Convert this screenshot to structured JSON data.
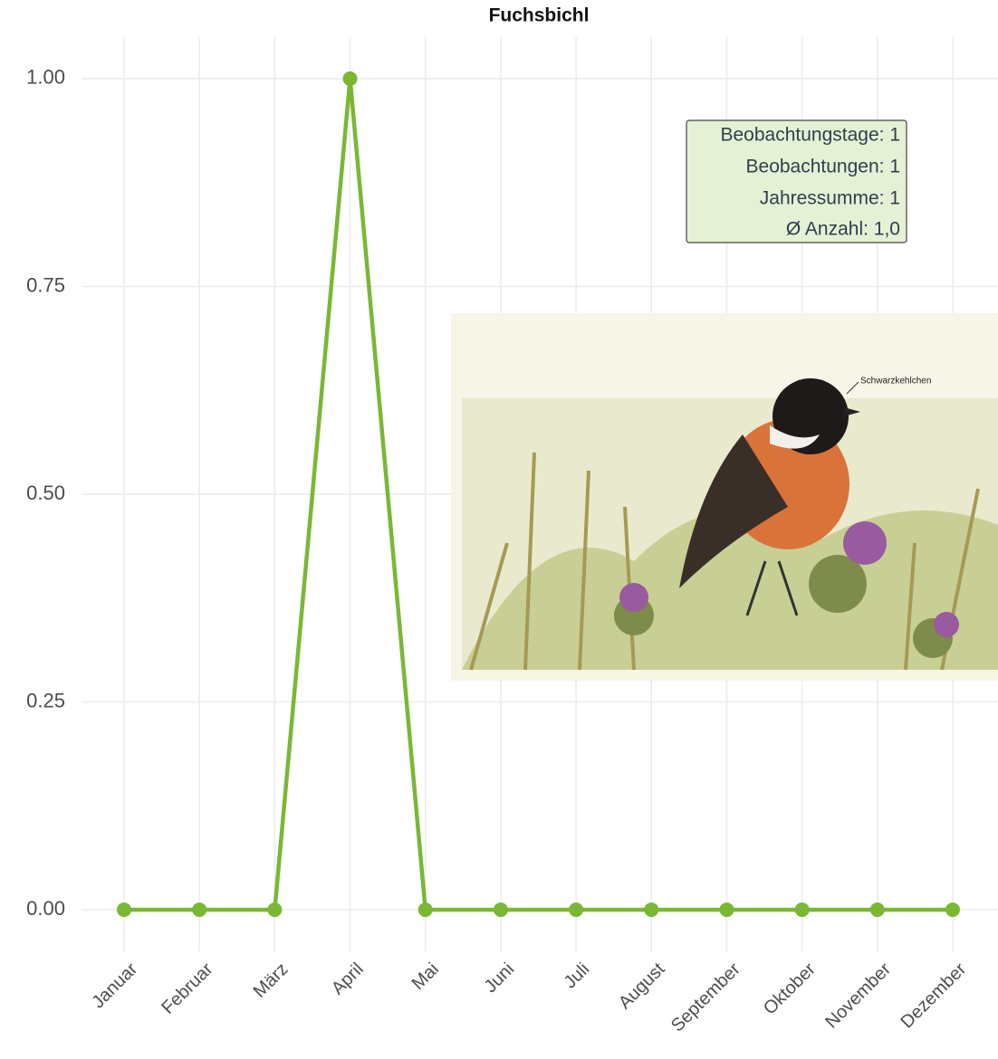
{
  "chart_data": {
    "type": "line",
    "title": "Fuchsbichl",
    "categories": [
      "Januar",
      "Februar",
      "März",
      "April",
      "Mai",
      "Juni",
      "Juli",
      "August",
      "September",
      "Oktober",
      "November",
      "Dezember"
    ],
    "series": [
      {
        "color": "#7ab833",
        "values": [
          0,
          0,
          0,
          1,
          0,
          0,
          0,
          0,
          0,
          0,
          0,
          0
        ]
      }
    ],
    "ylim": [
      -0.05,
      1.05
    ],
    "yticks": [
      {
        "value": 0,
        "label": "0.00"
      },
      0.25,
      {
        "value": 0.5,
        "label": "0.50"
      },
      0.75,
      {
        "value": 1,
        "label": "1.00"
      }
    ],
    "grid": true,
    "annotations": [
      "Beobachtungstage: 1",
      "Beobachtungen: 1",
      "Jahressumme: 1",
      "Ø Anzahl: 1,0"
    ],
    "image_label": "Schwarzkehlchen"
  }
}
